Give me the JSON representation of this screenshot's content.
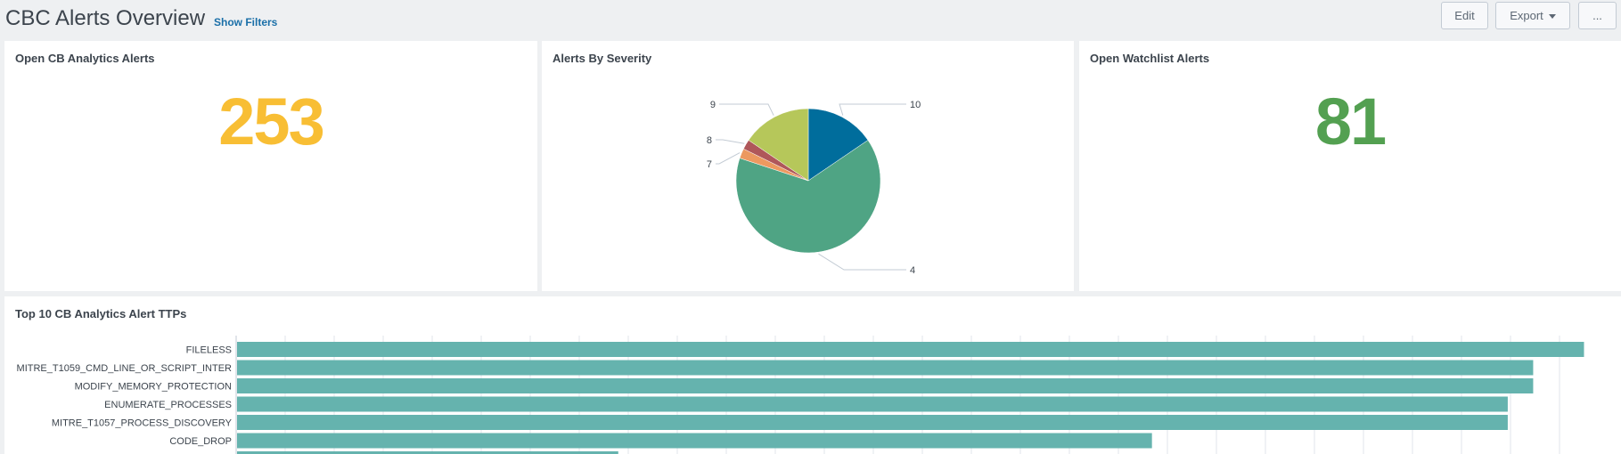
{
  "header": {
    "title": "CBC Alerts Overview",
    "show_filters": "Show Filters",
    "edit_label": "Edit",
    "export_label": "Export",
    "more_label": "..."
  },
  "panels": {
    "analytics": {
      "title": "Open CB Analytics Alerts",
      "value": "253",
      "color": "#f8be34"
    },
    "severity": {
      "title": "Alerts By Severity"
    },
    "watchlist": {
      "title": "Open Watchlist Alerts",
      "value": "81",
      "color": "#53a051"
    },
    "ttps": {
      "title": "Top 10 CB Analytics Alert TTPs"
    }
  },
  "chart_data": [
    {
      "type": "pie",
      "title": "Alerts By Severity",
      "categories": [
        "10",
        "4",
        "7",
        "8",
        "9"
      ],
      "values": [
        42,
        175,
        6,
        6,
        42
      ],
      "colors": [
        "#006d9c",
        "#4fa484",
        "#ec9960",
        "#af575a",
        "#b6c75a"
      ]
    },
    {
      "type": "bar",
      "orientation": "horizontal",
      "title": "Top 10 CB Analytics Alert TTPs",
      "categories": [
        "FILELESS",
        "MITRE_T1059_CMD_LINE_OR_SCRIPT_INTER",
        "MODIFY_MEMORY_PROTECTION",
        "ENUMERATE_PROCESSES",
        "MITRE_T1057_PROCESS_DISCOVERY",
        "CODE_DROP",
        ""
      ],
      "values": [
        53,
        51,
        51,
        50,
        50,
        36,
        15
      ],
      "xlim": [
        0,
        54
      ],
      "color": "#65b3ae"
    }
  ]
}
